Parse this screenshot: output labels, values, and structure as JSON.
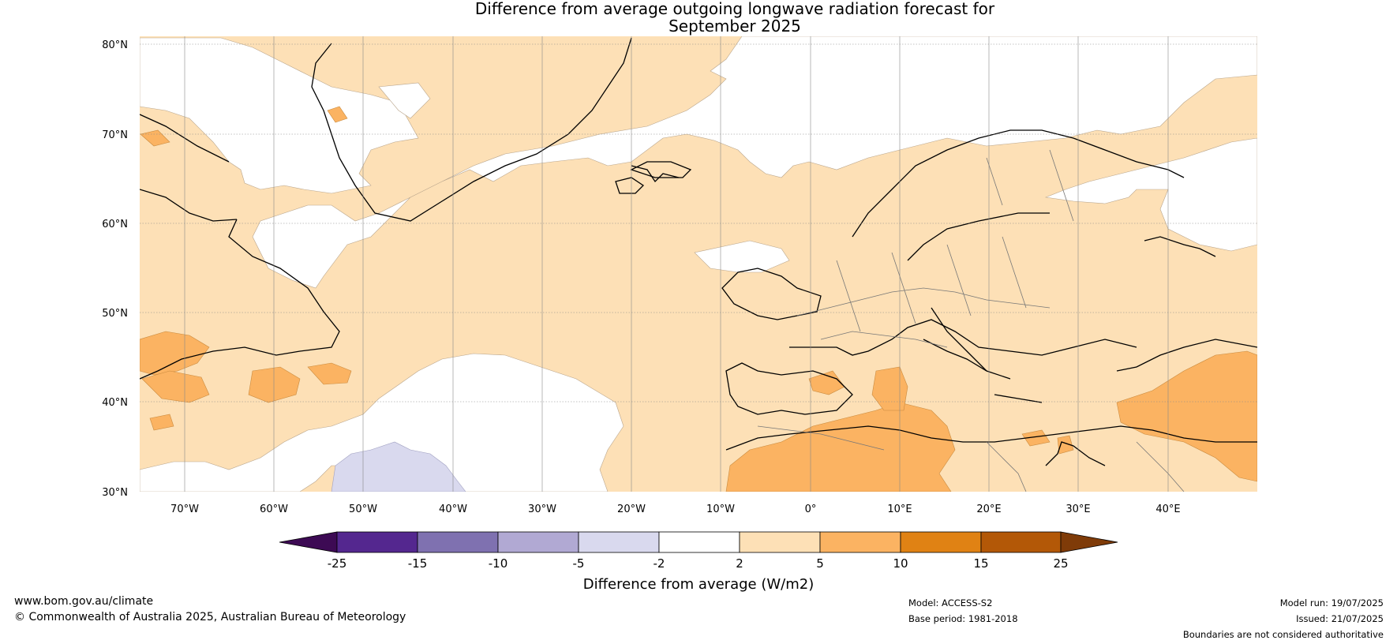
{
  "title_line1": "Difference from average outgoing longwave radiation forecast for",
  "title_line2": "September 2025",
  "map": {
    "lat_labels": [
      "80°N",
      "70°N",
      "60°N",
      "50°N",
      "40°N",
      "30°N"
    ],
    "lon_labels": [
      "70°W",
      "60°W",
      "50°W",
      "40°W",
      "30°W",
      "20°W",
      "10°W",
      "0°",
      "10°E",
      "20°E",
      "30°E",
      "40°E"
    ],
    "projection": "equirectangular",
    "lon_range": [
      -75,
      50
    ],
    "lat_range": [
      30,
      81
    ],
    "grid": true
  },
  "colorbar": {
    "tick_labels": [
      "-25",
      "-15",
      "-10",
      "-5",
      "-2",
      "2",
      "5",
      "10",
      "15",
      "25"
    ],
    "colors": [
      "#3d0a54",
      "#54278f",
      "#7f71b0",
      "#b1a9d3",
      "#d9d9ee",
      "#ffffff",
      "#fde0b6",
      "#fbb362",
      "#e08214",
      "#b35807",
      "#7f3b08"
    ],
    "title": "Difference from average (W/m2)"
  },
  "footer": {
    "url": "www.bom.gov.au/climate",
    "copyright": "© Commonwealth of Australia 2025, Australian Bureau of Meteorology",
    "model": "Model: ACCESS-S2",
    "base_period": "Base period: 1981-2018",
    "model_run": "Model run: 19/07/2025",
    "issued": "Issued: 21/07/2025",
    "disclaimer": "Boundaries are not considered authoritative"
  }
}
